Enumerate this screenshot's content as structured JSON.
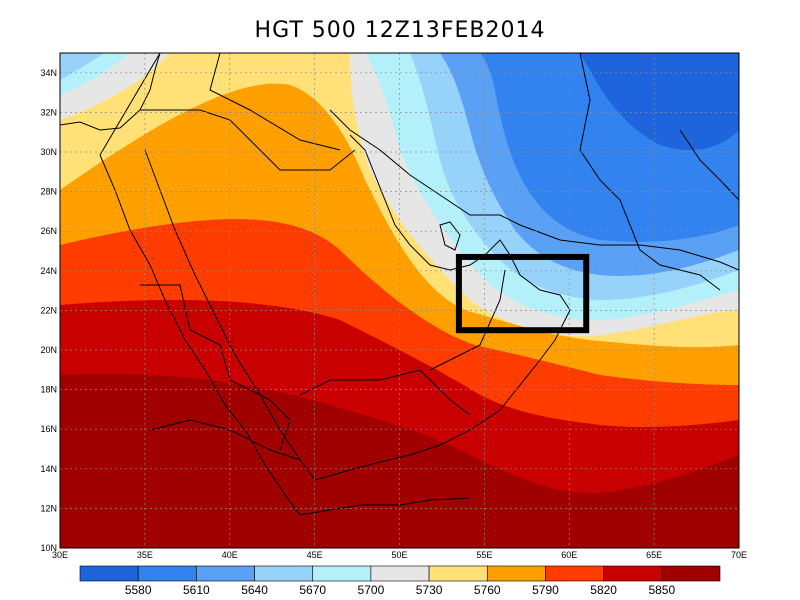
{
  "title": "HGT 500 12Z13FEB2014",
  "map": {
    "lon_range": [
      30,
      70
    ],
    "lat_range": [
      10,
      35
    ],
    "lon_ticks": [
      "30E",
      "35E",
      "40E",
      "45E",
      "50E",
      "55E",
      "60E",
      "65E",
      "70E"
    ],
    "lat_ticks": [
      "10N",
      "12N",
      "14N",
      "16N",
      "18N",
      "20N",
      "22N",
      "24N",
      "26N",
      "28N",
      "30N",
      "32N",
      "34N"
    ],
    "box_lon": [
      53.5,
      61
    ],
    "box_lat": [
      21,
      24.7
    ]
  },
  "colorbar": {
    "labels": [
      "5580",
      "5610",
      "5640",
      "5670",
      "5700",
      "5730",
      "5760",
      "5790",
      "5820",
      "5850"
    ],
    "colors": [
      "#1e64dc",
      "#3282f0",
      "#5aa0f5",
      "#96d2fa",
      "#b4f0fa",
      "#e6e6e6",
      "#ffe178",
      "#ffa000",
      "#ff3c00",
      "#c80000",
      "#a00000"
    ]
  }
}
